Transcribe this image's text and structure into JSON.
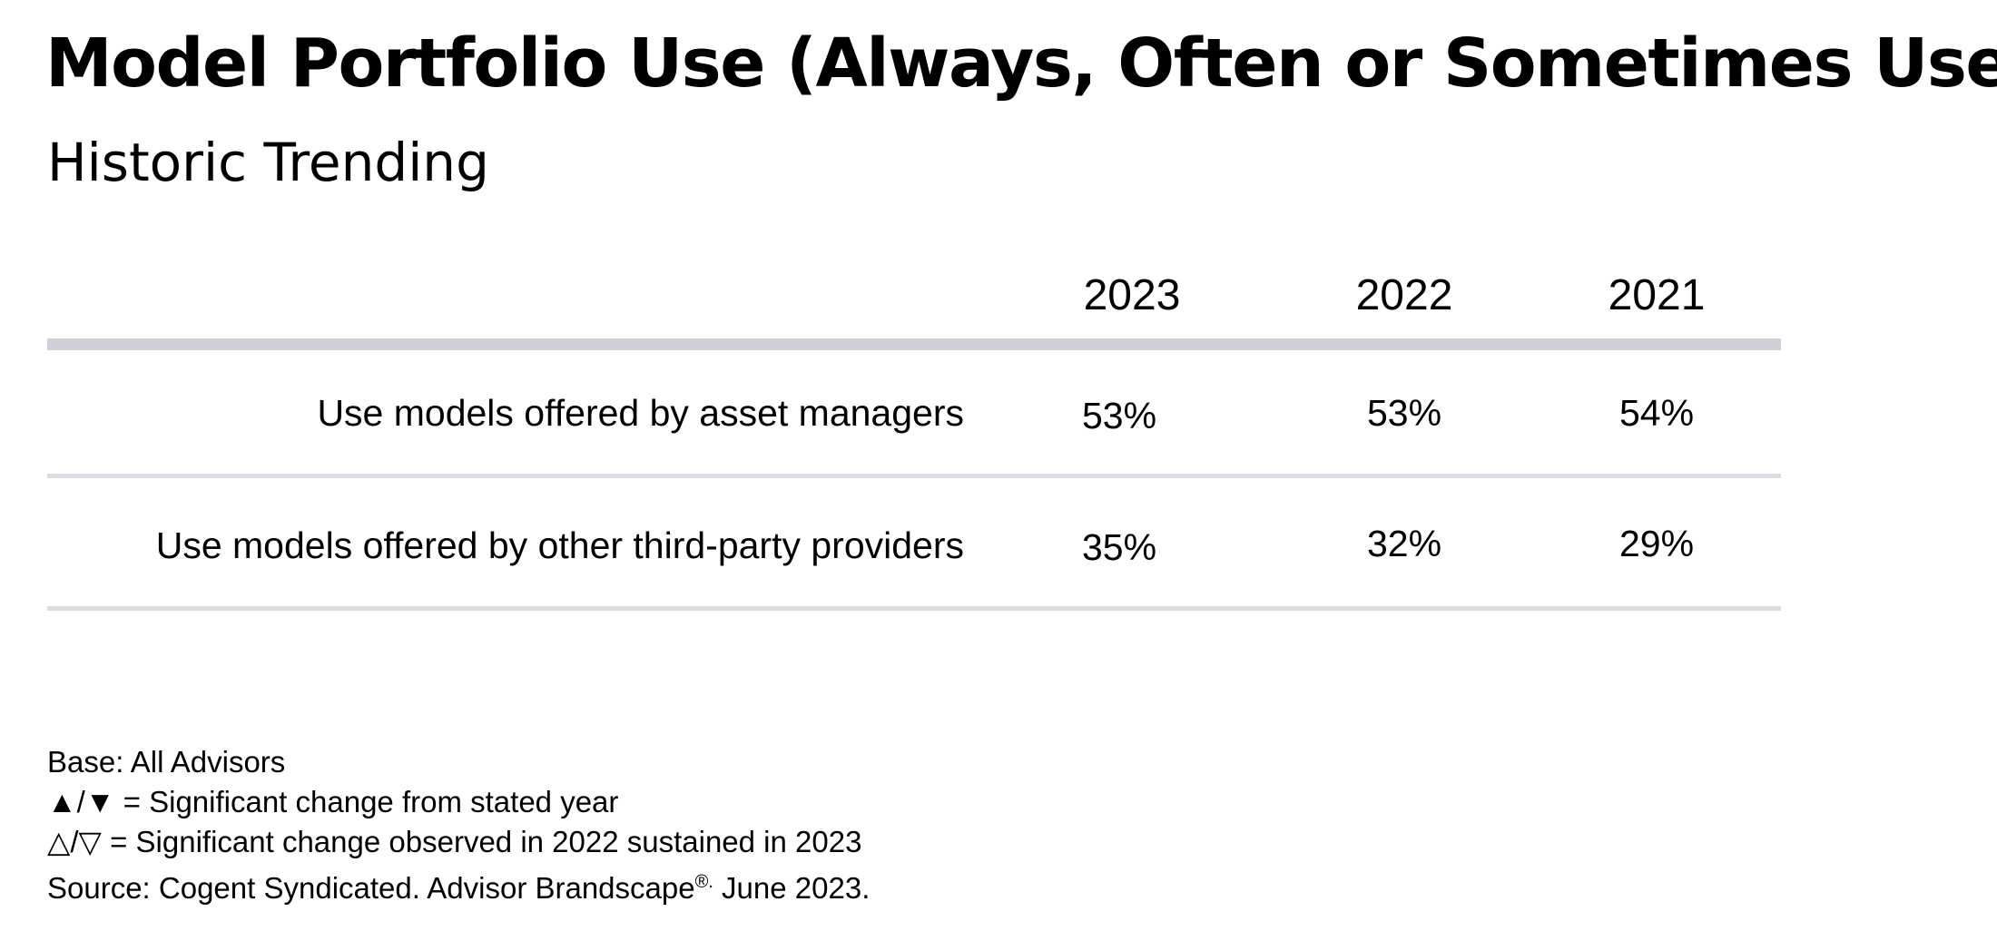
{
  "chart_data": {
    "type": "table",
    "title": "Model Portfolio Use (Always, Often or Sometimes Use)",
    "subtitle": "Historic Trending",
    "columns": [
      "2023",
      "2022",
      "2021"
    ],
    "rows": [
      {
        "label": "Use models offered by asset managers",
        "values": [
          "53%",
          "53%",
          "54%"
        ]
      },
      {
        "label": "Use models offered by other third-party providers",
        "values": [
          "35%",
          "32%",
          "29%"
        ]
      }
    ]
  },
  "footnotes": {
    "base": "Base: All Advisors",
    "legend_filled": "▲/▼ = Significant change from stated year",
    "legend_outline": "△/▽ = Significant change observed in 2022 sustained in 2023",
    "source_prefix": "Source: Cogent Syndicated. Advisor Brandscape",
    "source_mark": "®.",
    "source_suffix": " June 2023."
  }
}
